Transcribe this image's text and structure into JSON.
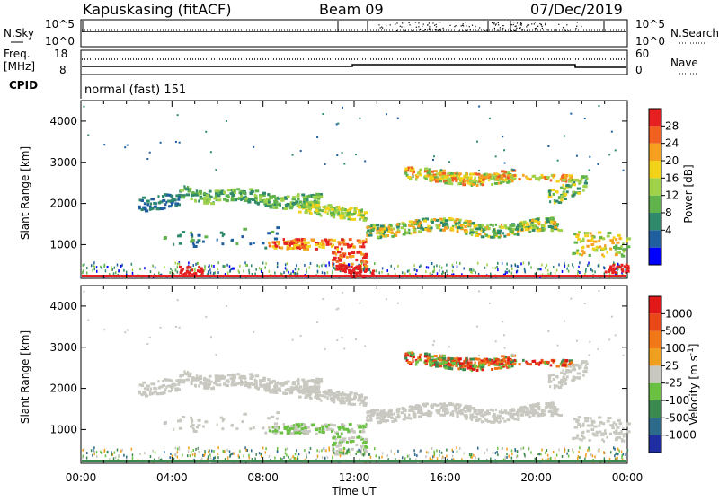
{
  "header": {
    "station": "Kapuskasing (fitACF)",
    "beam": "Beam 09",
    "date": "07/Dec/2019"
  },
  "noise_panel": {
    "left_label": "N.Sky",
    "right_label": "N.Search",
    "left_ticks": [
      "10^5",
      "10^0"
    ],
    "right_ticks": [
      "10^5",
      "10^0"
    ]
  },
  "freq_panel": {
    "left_label_1": "Freq.",
    "left_label_2": "[MHz]",
    "right_label": "Nave",
    "left_ticks": [
      "18",
      "8"
    ],
    "right_ticks": [
      "60",
      "0"
    ]
  },
  "cpid_panel": {
    "label": "CPID",
    "mode": "normal (fast) 151"
  },
  "chart_data": [
    {
      "type": "heatmap",
      "name": "power",
      "ylabel": "Slant Range [km]",
      "xlabel": "",
      "yticks": [
        "1000",
        "2000",
        "3000",
        "4000"
      ],
      "ylim": [
        180,
        4500
      ],
      "colorbar": {
        "label": "Power [dB]",
        "ticks": [
          "28",
          "24",
          "20",
          "16",
          "12",
          "8",
          "4"
        ],
        "range": [
          0,
          30
        ],
        "colors": [
          "#0000ff",
          "#1f5fa0",
          "#2e8a6a",
          "#5fb34a",
          "#9fd24a",
          "#f3d21a",
          "#f5a020",
          "#f06020",
          "#e62020"
        ]
      }
    },
    {
      "type": "heatmap",
      "name": "velocity",
      "ylabel": "Slant Range [km]",
      "xlabel": "Time UT",
      "yticks": [
        "1000",
        "2000",
        "3000",
        "4000"
      ],
      "ylim": [
        180,
        4500
      ],
      "xticks": [
        "00:00",
        "04:00",
        "08:00",
        "12:00",
        "16:00",
        "20:00",
        "00:00"
      ],
      "colorbar": {
        "label": "Velocity [m s^-1]",
        "ticks": [
          "1000",
          "500",
          "100",
          "25",
          "-25",
          "-100",
          "-500",
          "-1000"
        ],
        "colors": [
          "#1e2ea0",
          "#2c6a8c",
          "#3a8a50",
          "#6ac040",
          "#c8c8c0",
          "#f0a020",
          "#f07818",
          "#e84818",
          "#e01818"
        ]
      }
    }
  ]
}
